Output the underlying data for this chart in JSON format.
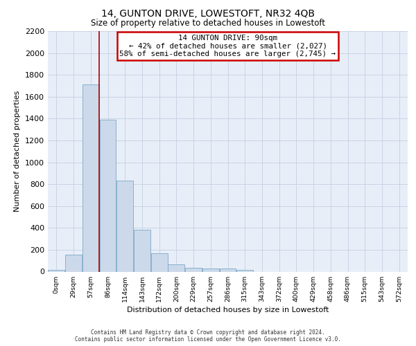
{
  "title": "14, GUNTON DRIVE, LOWESTOFT, NR32 4QB",
  "subtitle": "Size of property relative to detached houses in Lowestoft",
  "xlabel": "Distribution of detached houses by size in Lowestoft",
  "ylabel": "Number of detached properties",
  "bin_labels": [
    "0sqm",
    "29sqm",
    "57sqm",
    "86sqm",
    "114sqm",
    "143sqm",
    "172sqm",
    "200sqm",
    "229sqm",
    "257sqm",
    "286sqm",
    "315sqm",
    "343sqm",
    "372sqm",
    "400sqm",
    "429sqm",
    "458sqm",
    "486sqm",
    "515sqm",
    "543sqm",
    "572sqm"
  ],
  "bar_values": [
    15,
    155,
    1710,
    1390,
    830,
    385,
    165,
    65,
    35,
    30,
    30,
    15,
    0,
    0,
    0,
    0,
    0,
    0,
    0,
    0,
    0
  ],
  "bar_color": "#ccd9ea",
  "bar_edge_color": "#7aaac8",
  "property_label": "14 GUNTON DRIVE: 90sqm",
  "annotation_line1": "← 42% of detached houses are smaller (2,027)",
  "annotation_line2": "58% of semi-detached houses are larger (2,745) →",
  "annotation_box_color": "#ffffff",
  "annotation_box_edge_color": "#cc0000",
  "vline_color": "#aa0000",
  "vline_x": 2.5,
  "grid_color": "#c8d4e4",
  "background_color": "#e8eef8",
  "ylim": [
    0,
    2200
  ],
  "yticks": [
    0,
    200,
    400,
    600,
    800,
    1000,
    1200,
    1400,
    1600,
    1800,
    2000,
    2200
  ],
  "footer_line1": "Contains HM Land Registry data © Crown copyright and database right 2024.",
  "footer_line2": "Contains public sector information licensed under the Open Government Licence v3.0.",
  "title_fontsize": 10,
  "subtitle_fontsize": 8.5
}
